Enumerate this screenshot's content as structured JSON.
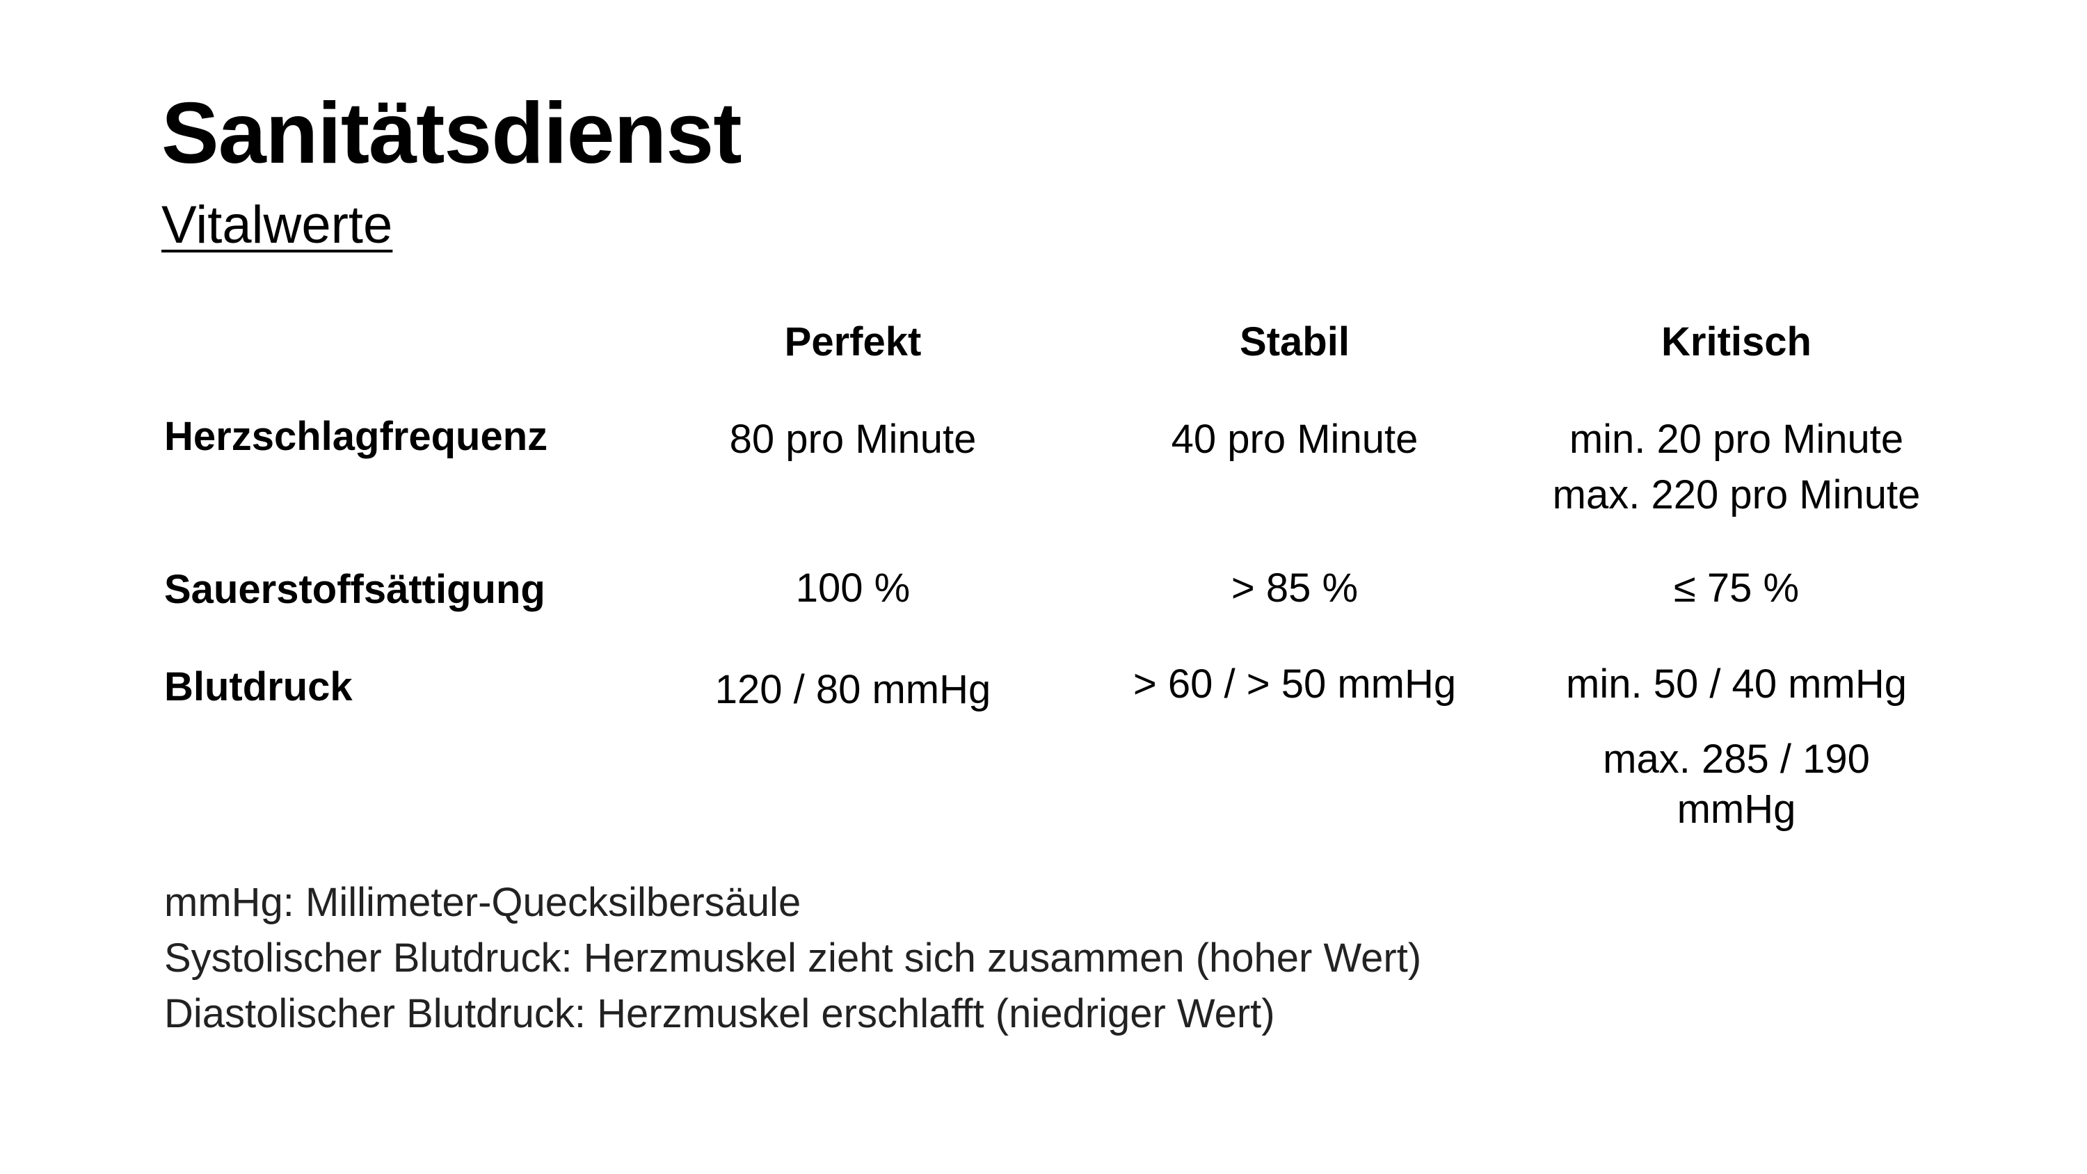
{
  "slide": {
    "title": "Sanitätsdienst",
    "subtitle": "Vitalwerte"
  },
  "table": {
    "headers": [
      "Perfekt",
      "Stabil",
      "Kritisch"
    ],
    "rows": [
      {
        "label": "Herzschlagfrequenz",
        "perfekt": "80 pro Minute",
        "stabil": "40 pro Minute",
        "kritisch": [
          "min. 20 pro Minute",
          "max. 220 pro Minute"
        ]
      },
      {
        "label": "Sauerstoffsättigung",
        "perfekt": "100 %",
        "stabil": "> 85 %",
        "kritisch": [
          "≤ 75 %"
        ]
      },
      {
        "label": "Blutdruck",
        "perfekt": "120 / 80 mmHg",
        "stabil": "> 60 / > 50 mmHg",
        "kritisch": [
          "min. 50 / 40 mmHg",
          "max. 285 / 190",
          "mmHg"
        ]
      }
    ]
  },
  "notes": [
    "mmHg: Millimeter-Quecksilbersäule",
    "Systolischer Blutdruck: Herzmuskel zieht sich zusammen (hoher Wert)",
    "Diastolischer Blutdruck: Herzmuskel erschlafft (niedriger Wert)"
  ]
}
